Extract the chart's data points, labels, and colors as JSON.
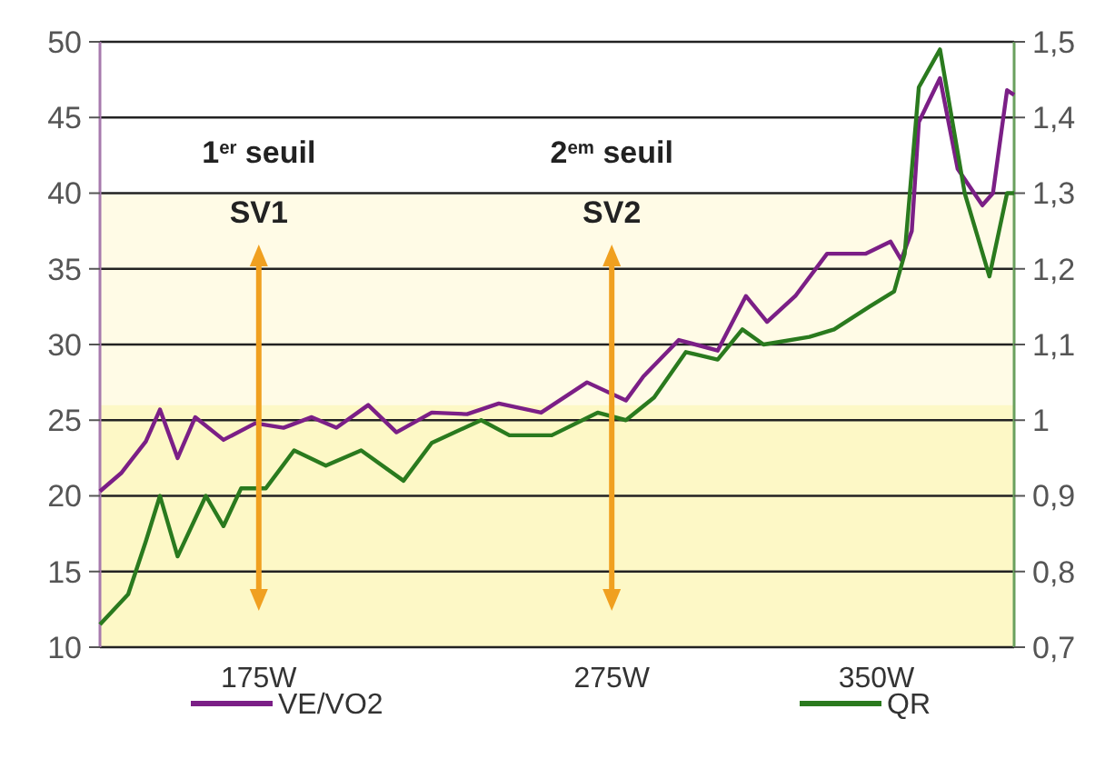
{
  "chart_data": {
    "type": "line",
    "xlim": [
      130,
      389
    ],
    "xticks": [
      {
        "value": 175,
        "label": "175W"
      },
      {
        "value": 275,
        "label": "275W"
      },
      {
        "value": 350,
        "label": "350W"
      }
    ],
    "ylim": [
      10,
      50
    ],
    "yticks": [
      10,
      15,
      20,
      25,
      30,
      35,
      40,
      45,
      50
    ],
    "y2lim": [
      0.7,
      1.5
    ],
    "y2ticks": [
      {
        "value": 0.7,
        "label": "0,7"
      },
      {
        "value": 0.8,
        "label": "0,8"
      },
      {
        "value": 0.9,
        "label": "0,9"
      },
      1,
      {
        "value": 1.1,
        "label": "1,1"
      },
      {
        "value": 1.2,
        "label": "1,2"
      },
      {
        "value": 1.3,
        "label": "1,3"
      },
      {
        "value": 1.4,
        "label": "1,4"
      },
      {
        "value": 1.5,
        "label": "1,5"
      }
    ],
    "grid": "y",
    "legend": "bottom",
    "marker": "none",
    "line_style": "solid",
    "bands": [
      {
        "axis": "y",
        "from": 26,
        "to": 40,
        "color": "#fffbe6"
      },
      {
        "axis": "y",
        "from": 10,
        "to": 26,
        "color": "#fdf8c6"
      }
    ],
    "ref_lines": [
      {
        "axis": "x",
        "value": 175,
        "label": "SV1",
        "color": "#f0a020"
      },
      {
        "axis": "x",
        "value": 275,
        "label": "SV2",
        "color": "#f0a020"
      }
    ],
    "annotations": [
      "1$^{er}$ seuil",
      "2$^{em}$ seuil"
    ],
    "series": [
      {
        "name": "VE/VO2",
        "color": "#7b1f86",
        "x": [
          130,
          136,
          143,
          147,
          152,
          157,
          165,
          174,
          182,
          190,
          197,
          206,
          214,
          224,
          234,
          243,
          255,
          268,
          279,
          284,
          294,
          305,
          313,
          319,
          327,
          336,
          347,
          354,
          357,
          360,
          362,
          368,
          373,
          380,
          383,
          387,
          389
        ],
        "values": [
          20.3,
          21.5,
          23.6,
          25.7,
          22.5,
          25.2,
          23.7,
          24.8,
          24.5,
          25.2,
          24.5,
          26,
          24.2,
          25.5,
          25.4,
          26.1,
          25.5,
          27.5,
          26.3,
          27.9,
          30.3,
          29.6,
          33.2,
          31.5,
          33.2,
          36,
          36,
          36.8,
          35.6,
          37.5,
          44.7,
          47.6,
          41.6,
          39.2,
          40,
          46.8,
          46.5
        ]
      },
      {
        "name": "QR",
        "color": "#2a7a1e",
        "axis": "y2",
        "x": [
          130,
          138,
          143,
          147,
          152,
          160,
          165,
          170,
          177,
          185,
          194,
          204,
          216,
          224,
          238,
          246,
          258,
          271,
          279,
          287,
          296,
          305,
          312,
          318,
          331,
          338,
          348,
          355,
          358,
          362,
          368,
          375,
          382,
          387,
          389
        ],
        "values": [
          0.73,
          0.77,
          0.84,
          0.9,
          0.82,
          0.9,
          0.86,
          0.91,
          0.91,
          0.96,
          0.94,
          0.96,
          0.92,
          0.97,
          1,
          0.98,
          0.98,
          1.01,
          1,
          1.03,
          1.09,
          1.08,
          1.12,
          1.1,
          1.11,
          1.12,
          1.15,
          1.17,
          1.22,
          1.44,
          1.49,
          1.3,
          1.19,
          1.3,
          1.3
        ]
      }
    ]
  }
}
